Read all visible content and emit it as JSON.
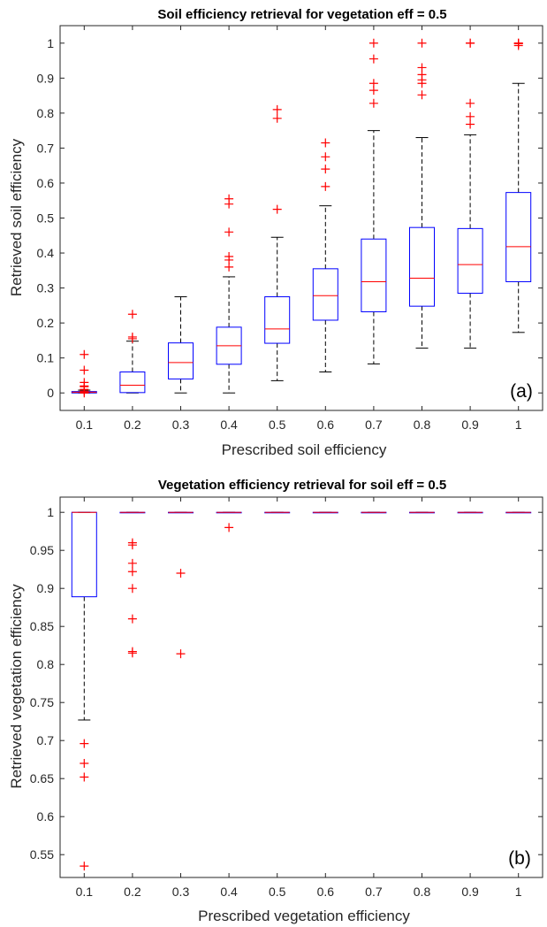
{
  "chart_data": [
    {
      "type": "boxplot",
      "panel_label": "(a)",
      "title": "Soil efficiency retrieval for vegetation eff = 0.5",
      "xlabel": "Prescribed soil efficiency",
      "ylabel": "Retrieved soil efficiency",
      "ylim": [
        -0.05,
        1.05
      ],
      "yticks": [
        0,
        0.1,
        0.2,
        0.3,
        0.4,
        0.5,
        0.6,
        0.7,
        0.8,
        0.9,
        1
      ],
      "ytick_labels": [
        "0",
        "0.1",
        "0.2",
        "0.3",
        "0.4",
        "0.5",
        "0.6",
        "0.7",
        "0.8",
        "0.9",
        "1"
      ],
      "categories": [
        "0.1",
        "0.2",
        "0.3",
        "0.4",
        "0.5",
        "0.6",
        "0.7",
        "0.8",
        "0.9",
        "1"
      ],
      "boxes": [
        {
          "whisker_low": 0,
          "q1": 0,
          "median": 0.002,
          "q3": 0.004,
          "whisker_high": 0.008,
          "outliers": [
            0.11,
            0.065,
            0.03,
            0.02,
            0.018,
            0.01,
            0.005,
            0
          ]
        },
        {
          "whisker_low": 0,
          "q1": 0.001,
          "median": 0.022,
          "q3": 0.06,
          "whisker_high": 0.148,
          "outliers": [
            0.225,
            0.16,
            0.155
          ]
        },
        {
          "whisker_low": 0,
          "q1": 0.04,
          "median": 0.087,
          "q3": 0.143,
          "whisker_high": 0.275,
          "outliers": []
        },
        {
          "whisker_low": 0,
          "q1": 0.082,
          "median": 0.135,
          "q3": 0.188,
          "whisker_high": 0.332,
          "outliers": [
            0.555,
            0.54,
            0.46,
            0.39,
            0.38,
            0.36
          ]
        },
        {
          "whisker_low": 0.035,
          "q1": 0.142,
          "median": 0.183,
          "q3": 0.275,
          "whisker_high": 0.445,
          "outliers": [
            0.81,
            0.785,
            0.525
          ]
        },
        {
          "whisker_low": 0.06,
          "q1": 0.208,
          "median": 0.278,
          "q3": 0.355,
          "whisker_high": 0.535,
          "outliers": [
            0.715,
            0.675,
            0.64,
            0.59
          ]
        },
        {
          "whisker_low": 0.083,
          "q1": 0.232,
          "median": 0.318,
          "q3": 0.44,
          "whisker_high": 0.75,
          "outliers": [
            1,
            0.955,
            0.885,
            0.865,
            0.828
          ]
        },
        {
          "whisker_low": 0.128,
          "q1": 0.248,
          "median": 0.328,
          "q3": 0.473,
          "whisker_high": 0.73,
          "outliers": [
            1,
            0.93,
            0.91,
            0.895,
            0.885,
            0.852
          ]
        },
        {
          "whisker_low": 0.128,
          "q1": 0.285,
          "median": 0.367,
          "q3": 0.47,
          "whisker_high": 0.738,
          "outliers": [
            1,
            1,
            0.828,
            0.79,
            0.768
          ]
        },
        {
          "whisker_low": 0.173,
          "q1": 0.318,
          "median": 0.418,
          "q3": 0.573,
          "whisker_high": 0.885,
          "outliers": [
            1,
            1,
            0.998,
            0.993
          ]
        }
      ]
    },
    {
      "type": "boxplot",
      "panel_label": "(b)",
      "title": "Vegetation efficiency retrieval for soil eff = 0.5",
      "xlabel": "Prescribed vegetation efficiency",
      "ylabel": "Retrieved vegetation efficiency",
      "ylim": [
        0.52,
        1.02
      ],
      "yticks": [
        0.55,
        0.6,
        0.65,
        0.7,
        0.75,
        0.8,
        0.85,
        0.9,
        0.95,
        1
      ],
      "ytick_labels": [
        "0.55",
        "0.6",
        "0.65",
        "0.7",
        "0.75",
        "0.8",
        "0.85",
        "0.9",
        "0.95",
        "1"
      ],
      "categories": [
        "0.1",
        "0.2",
        "0.3",
        "0.4",
        "0.5",
        "0.6",
        "0.7",
        "0.8",
        "0.9",
        "1"
      ],
      "boxes": [
        {
          "whisker_low": 0.727,
          "q1": 0.889,
          "median": 1,
          "q3": 1,
          "whisker_high": 1,
          "outliers": [
            0.696,
            0.67,
            0.652,
            0.535
          ]
        },
        {
          "whisker_low": 1,
          "q1": 1,
          "median": 1,
          "q3": 1,
          "whisker_high": 1,
          "outliers": [
            0.96,
            0.957,
            0.933,
            0.922,
            0.9,
            0.86,
            0.817,
            0.815
          ]
        },
        {
          "whisker_low": 1,
          "q1": 1,
          "median": 1,
          "q3": 1,
          "whisker_high": 1,
          "outliers": [
            0.92,
            0.814
          ]
        },
        {
          "whisker_low": 1,
          "q1": 1,
          "median": 1,
          "q3": 1,
          "whisker_high": 1,
          "outliers": [
            0.98
          ]
        },
        {
          "whisker_low": 1,
          "q1": 1,
          "median": 1,
          "q3": 1,
          "whisker_high": 1,
          "outliers": []
        },
        {
          "whisker_low": 1,
          "q1": 1,
          "median": 1,
          "q3": 1,
          "whisker_high": 1,
          "outliers": []
        },
        {
          "whisker_low": 1,
          "q1": 1,
          "median": 1,
          "q3": 1,
          "whisker_high": 1,
          "outliers": []
        },
        {
          "whisker_low": 1,
          "q1": 1,
          "median": 1,
          "q3": 1,
          "whisker_high": 1,
          "outliers": []
        },
        {
          "whisker_low": 1,
          "q1": 1,
          "median": 1,
          "q3": 1,
          "whisker_high": 1,
          "outliers": []
        },
        {
          "whisker_low": 1,
          "q1": 1,
          "median": 1,
          "q3": 1,
          "whisker_high": 1,
          "outliers": []
        }
      ]
    }
  ],
  "colors": {
    "box": "#0000ff",
    "median": "#ff0000",
    "outlier": "#ff0000",
    "whisker": "#000000",
    "axis": "#262626"
  }
}
